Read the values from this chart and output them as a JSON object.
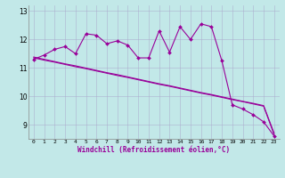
{
  "xlabel": "Windchill (Refroidissement éolien,°C)",
  "background_color": "#c2e8e8",
  "line_color": "#990099",
  "grid_color": "#aaaacc",
  "hours": [
    0,
    1,
    2,
    3,
    4,
    5,
    6,
    7,
    8,
    9,
    10,
    11,
    12,
    13,
    14,
    15,
    16,
    17,
    18,
    19,
    20,
    21,
    22,
    23
  ],
  "windchill": [
    11.3,
    11.45,
    11.65,
    11.75,
    11.5,
    12.2,
    12.15,
    11.85,
    11.95,
    11.8,
    11.35,
    11.35,
    12.3,
    11.55,
    12.45,
    12.0,
    12.55,
    12.45,
    11.25,
    9.7,
    9.55,
    9.35,
    9.1,
    8.6
  ],
  "trend1": [
    11.35,
    11.27,
    11.2,
    11.12,
    11.04,
    10.97,
    10.89,
    10.81,
    10.73,
    10.66,
    10.58,
    10.5,
    10.42,
    10.35,
    10.27,
    10.19,
    10.11,
    10.04,
    9.96,
    9.88,
    9.81,
    9.73,
    9.65,
    8.65
  ],
  "trend2": [
    11.38,
    11.3,
    11.22,
    11.14,
    11.07,
    10.99,
    10.91,
    10.83,
    10.76,
    10.68,
    10.6,
    10.52,
    10.44,
    10.37,
    10.29,
    10.21,
    10.13,
    10.06,
    9.98,
    9.9,
    9.82,
    9.75,
    9.67,
    8.7
  ],
  "ylim": [
    8.5,
    13.2
  ],
  "yticks": [
    9,
    10,
    11,
    12,
    13
  ],
  "xlabel_fontsize": 5.5,
  "xtick_fontsize": 4.5,
  "ytick_fontsize": 5.5,
  "marker_size": 2.0,
  "line_width": 0.8
}
